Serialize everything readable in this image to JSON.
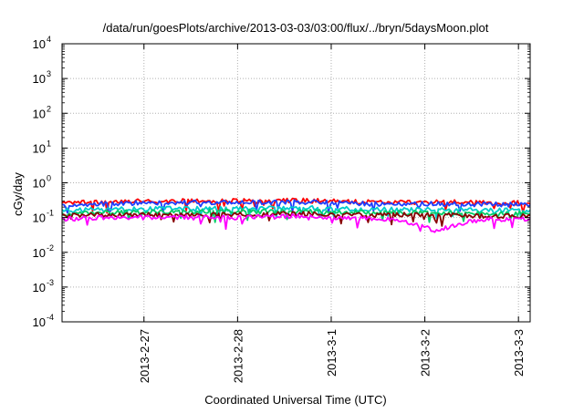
{
  "chart_data": {
    "type": "line",
    "title": "/data/run/goesPlots/archive/2013-03-03/03:00/flux/../bryn/5daysMoon.plot",
    "xlabel": "Coordinated Universal Time (UTC)",
    "ylabel": "cGy/day",
    "y_scale": "log",
    "ylim": [
      0.0001,
      10000
    ],
    "y_ticks": [
      {
        "value": 0.0001,
        "base": "10",
        "exp": "-4"
      },
      {
        "value": 0.001,
        "base": "10",
        "exp": "-3"
      },
      {
        "value": 0.01,
        "base": "10",
        "exp": "-2"
      },
      {
        "value": 0.1,
        "base": "10",
        "exp": "-1"
      },
      {
        "value": 1,
        "base": "10",
        "exp": "0"
      },
      {
        "value": 10,
        "base": "10",
        "exp": "1"
      },
      {
        "value": 100,
        "base": "10",
        "exp": "2"
      },
      {
        "value": 1000,
        "base": "10",
        "exp": "3"
      },
      {
        "value": 10000,
        "base": "10",
        "exp": "4"
      }
    ],
    "xlim": [
      "2013-02-26 03:00",
      "2013-03-03 03:00"
    ],
    "x_ticks": [
      "2013-2-27",
      "2013-2-28",
      "2013-3-1",
      "2013-3-2",
      "2013-3-3"
    ],
    "grid": true,
    "x_sample_days": [
      0.0,
      0.5,
      1.0,
      1.5,
      2.0,
      2.5,
      3.0,
      3.5,
      4.0,
      4.5,
      5.0
    ],
    "series": [
      {
        "color": "#ff0000",
        "values": [
          0.26,
          0.28,
          0.3,
          0.3,
          0.3,
          0.31,
          0.29,
          0.27,
          0.28,
          0.27,
          0.26
        ]
      },
      {
        "color": "#1f3fff",
        "values": [
          0.23,
          0.25,
          0.27,
          0.27,
          0.27,
          0.28,
          0.26,
          0.24,
          0.25,
          0.24,
          0.23
        ]
      },
      {
        "color": "#00cccc",
        "values": [
          0.16,
          0.17,
          0.18,
          0.18,
          0.18,
          0.19,
          0.18,
          0.17,
          0.17,
          0.16,
          0.16
        ]
      },
      {
        "color": "#00cc66",
        "values": [
          0.13,
          0.14,
          0.15,
          0.15,
          0.15,
          0.15,
          0.14,
          0.14,
          0.14,
          0.13,
          0.13
        ]
      },
      {
        "color": "#880000",
        "values": [
          0.11,
          0.12,
          0.12,
          0.12,
          0.12,
          0.13,
          0.12,
          0.12,
          0.12,
          0.11,
          0.11
        ]
      },
      {
        "color": "#ff00ff",
        "values": [
          0.09,
          0.1,
          0.1,
          0.1,
          0.1,
          0.11,
          0.1,
          0.09,
          0.04,
          0.09,
          0.09
        ]
      }
    ]
  }
}
